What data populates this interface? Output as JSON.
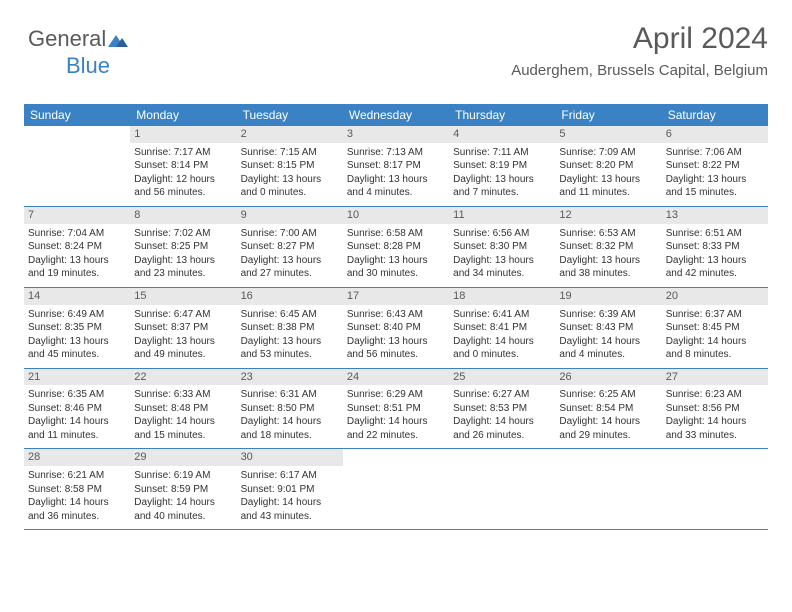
{
  "logo": {
    "text1": "General",
    "text2": "Blue"
  },
  "header": {
    "title": "April 2024",
    "location": "Auderghem, Brussels Capital, Belgium"
  },
  "colors": {
    "header_bg": "#3a82c4",
    "header_fg": "#ffffff",
    "daynum_bg": "#e8e8e8",
    "daynum_fg": "#5a5a5a",
    "text": "#333333",
    "border": "#3a82c4"
  },
  "day_names": [
    "Sunday",
    "Monday",
    "Tuesday",
    "Wednesday",
    "Thursday",
    "Friday",
    "Saturday"
  ],
  "weeks": [
    [
      null,
      {
        "n": "1",
        "sr": "Sunrise: 7:17 AM",
        "ss": "Sunset: 8:14 PM",
        "d1": "Daylight: 12 hours",
        "d2": "and 56 minutes."
      },
      {
        "n": "2",
        "sr": "Sunrise: 7:15 AM",
        "ss": "Sunset: 8:15 PM",
        "d1": "Daylight: 13 hours",
        "d2": "and 0 minutes."
      },
      {
        "n": "3",
        "sr": "Sunrise: 7:13 AM",
        "ss": "Sunset: 8:17 PM",
        "d1": "Daylight: 13 hours",
        "d2": "and 4 minutes."
      },
      {
        "n": "4",
        "sr": "Sunrise: 7:11 AM",
        "ss": "Sunset: 8:19 PM",
        "d1": "Daylight: 13 hours",
        "d2": "and 7 minutes."
      },
      {
        "n": "5",
        "sr": "Sunrise: 7:09 AM",
        "ss": "Sunset: 8:20 PM",
        "d1": "Daylight: 13 hours",
        "d2": "and 11 minutes."
      },
      {
        "n": "6",
        "sr": "Sunrise: 7:06 AM",
        "ss": "Sunset: 8:22 PM",
        "d1": "Daylight: 13 hours",
        "d2": "and 15 minutes."
      }
    ],
    [
      {
        "n": "7",
        "sr": "Sunrise: 7:04 AM",
        "ss": "Sunset: 8:24 PM",
        "d1": "Daylight: 13 hours",
        "d2": "and 19 minutes."
      },
      {
        "n": "8",
        "sr": "Sunrise: 7:02 AM",
        "ss": "Sunset: 8:25 PM",
        "d1": "Daylight: 13 hours",
        "d2": "and 23 minutes."
      },
      {
        "n": "9",
        "sr": "Sunrise: 7:00 AM",
        "ss": "Sunset: 8:27 PM",
        "d1": "Daylight: 13 hours",
        "d2": "and 27 minutes."
      },
      {
        "n": "10",
        "sr": "Sunrise: 6:58 AM",
        "ss": "Sunset: 8:28 PM",
        "d1": "Daylight: 13 hours",
        "d2": "and 30 minutes."
      },
      {
        "n": "11",
        "sr": "Sunrise: 6:56 AM",
        "ss": "Sunset: 8:30 PM",
        "d1": "Daylight: 13 hours",
        "d2": "and 34 minutes."
      },
      {
        "n": "12",
        "sr": "Sunrise: 6:53 AM",
        "ss": "Sunset: 8:32 PM",
        "d1": "Daylight: 13 hours",
        "d2": "and 38 minutes."
      },
      {
        "n": "13",
        "sr": "Sunrise: 6:51 AM",
        "ss": "Sunset: 8:33 PM",
        "d1": "Daylight: 13 hours",
        "d2": "and 42 minutes."
      }
    ],
    [
      {
        "n": "14",
        "sr": "Sunrise: 6:49 AM",
        "ss": "Sunset: 8:35 PM",
        "d1": "Daylight: 13 hours",
        "d2": "and 45 minutes."
      },
      {
        "n": "15",
        "sr": "Sunrise: 6:47 AM",
        "ss": "Sunset: 8:37 PM",
        "d1": "Daylight: 13 hours",
        "d2": "and 49 minutes."
      },
      {
        "n": "16",
        "sr": "Sunrise: 6:45 AM",
        "ss": "Sunset: 8:38 PM",
        "d1": "Daylight: 13 hours",
        "d2": "and 53 minutes."
      },
      {
        "n": "17",
        "sr": "Sunrise: 6:43 AM",
        "ss": "Sunset: 8:40 PM",
        "d1": "Daylight: 13 hours",
        "d2": "and 56 minutes."
      },
      {
        "n": "18",
        "sr": "Sunrise: 6:41 AM",
        "ss": "Sunset: 8:41 PM",
        "d1": "Daylight: 14 hours",
        "d2": "and 0 minutes."
      },
      {
        "n": "19",
        "sr": "Sunrise: 6:39 AM",
        "ss": "Sunset: 8:43 PM",
        "d1": "Daylight: 14 hours",
        "d2": "and 4 minutes."
      },
      {
        "n": "20",
        "sr": "Sunrise: 6:37 AM",
        "ss": "Sunset: 8:45 PM",
        "d1": "Daylight: 14 hours",
        "d2": "and 8 minutes."
      }
    ],
    [
      {
        "n": "21",
        "sr": "Sunrise: 6:35 AM",
        "ss": "Sunset: 8:46 PM",
        "d1": "Daylight: 14 hours",
        "d2": "and 11 minutes."
      },
      {
        "n": "22",
        "sr": "Sunrise: 6:33 AM",
        "ss": "Sunset: 8:48 PM",
        "d1": "Daylight: 14 hours",
        "d2": "and 15 minutes."
      },
      {
        "n": "23",
        "sr": "Sunrise: 6:31 AM",
        "ss": "Sunset: 8:50 PM",
        "d1": "Daylight: 14 hours",
        "d2": "and 18 minutes."
      },
      {
        "n": "24",
        "sr": "Sunrise: 6:29 AM",
        "ss": "Sunset: 8:51 PM",
        "d1": "Daylight: 14 hours",
        "d2": "and 22 minutes."
      },
      {
        "n": "25",
        "sr": "Sunrise: 6:27 AM",
        "ss": "Sunset: 8:53 PM",
        "d1": "Daylight: 14 hours",
        "d2": "and 26 minutes."
      },
      {
        "n": "26",
        "sr": "Sunrise: 6:25 AM",
        "ss": "Sunset: 8:54 PM",
        "d1": "Daylight: 14 hours",
        "d2": "and 29 minutes."
      },
      {
        "n": "27",
        "sr": "Sunrise: 6:23 AM",
        "ss": "Sunset: 8:56 PM",
        "d1": "Daylight: 14 hours",
        "d2": "and 33 minutes."
      }
    ],
    [
      {
        "n": "28",
        "sr": "Sunrise: 6:21 AM",
        "ss": "Sunset: 8:58 PM",
        "d1": "Daylight: 14 hours",
        "d2": "and 36 minutes."
      },
      {
        "n": "29",
        "sr": "Sunrise: 6:19 AM",
        "ss": "Sunset: 8:59 PM",
        "d1": "Daylight: 14 hours",
        "d2": "and 40 minutes."
      },
      {
        "n": "30",
        "sr": "Sunrise: 6:17 AM",
        "ss": "Sunset: 9:01 PM",
        "d1": "Daylight: 14 hours",
        "d2": "and 43 minutes."
      },
      null,
      null,
      null,
      null
    ]
  ]
}
